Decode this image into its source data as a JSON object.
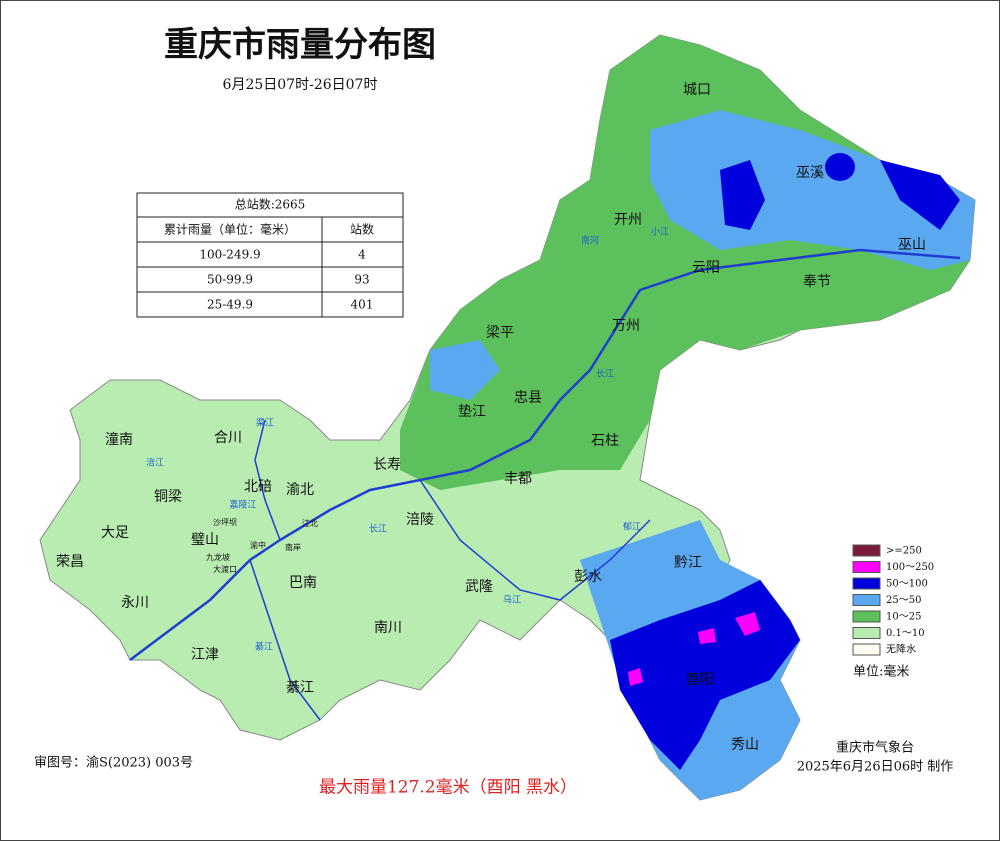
{
  "header": {
    "title": "重庆市雨量分布图",
    "subtitle": "6月25日07时-26日07时"
  },
  "table": {
    "caption": "总站数:2665",
    "columns": [
      "累计雨量（单位：毫米）",
      "站数"
    ],
    "rows": [
      [
        "100-249.9",
        4
      ],
      [
        "50-99.9",
        93
      ],
      [
        "25-49.9",
        401
      ]
    ]
  },
  "legend": {
    "items": [
      ">=250",
      "100～250",
      "50～100",
      "25～50",
      "10～25",
      "0.1～10",
      "无降水"
    ],
    "unit": "单位:毫米"
  },
  "places": [
    "城口",
    "巫溪",
    "开州",
    "巫山",
    "云阳",
    "奉节",
    "梁平",
    "万州",
    "忠县",
    "垫江",
    "石柱",
    "潼南",
    "合川",
    "长寿",
    "丰都",
    "北碚",
    "渝北",
    "铜梁",
    "大足",
    "璧山",
    "涪陵",
    "荣昌",
    "黔江",
    "巴南",
    "武隆",
    "彭水",
    "永川",
    "南川",
    "江津",
    "酉阳",
    "綦江",
    "秀山",
    "沙坪坝",
    "九龙坡",
    "大渡口",
    "渝中",
    "江北",
    "南岸"
  ],
  "rivers": [
    "南河",
    "小江",
    "长江",
    "长江",
    "渠江",
    "涪江",
    "嘉陵江",
    "綦江",
    "乌江",
    "郁江"
  ],
  "footer": {
    "approval": "审图号：渝S(2023) 003号",
    "max_rain": "最大雨量127.2毫米（酉阳 黑水）",
    "agency": "重庆市气象台",
    "issued": "2025年6月26日06时 制作"
  }
}
